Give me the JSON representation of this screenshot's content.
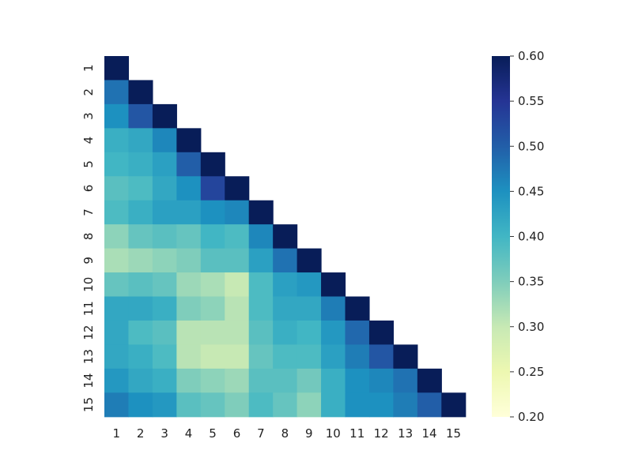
{
  "chart_data": {
    "type": "heatmap",
    "x_labels": [
      "1",
      "2",
      "3",
      "4",
      "5",
      "6",
      "7",
      "8",
      "9",
      "10",
      "11",
      "12",
      "13",
      "14",
      "15"
    ],
    "y_labels": [
      "1",
      "2",
      "3",
      "4",
      "5",
      "6",
      "7",
      "8",
      "9",
      "10",
      "11",
      "12",
      "13",
      "14",
      "15"
    ],
    "mask": "upper triangle (cells above diagonal hidden)",
    "values": [
      [
        0.6
      ],
      [
        0.48,
        0.6
      ],
      [
        0.45,
        0.51,
        0.6
      ],
      [
        0.41,
        0.42,
        0.46,
        0.6
      ],
      [
        0.4,
        0.41,
        0.43,
        0.5,
        0.6
      ],
      [
        0.38,
        0.39,
        0.42,
        0.45,
        0.53,
        0.6
      ],
      [
        0.39,
        0.41,
        0.43,
        0.43,
        0.45,
        0.46,
        0.6
      ],
      [
        0.34,
        0.37,
        0.38,
        0.37,
        0.4,
        0.39,
        0.46,
        0.6
      ],
      [
        0.32,
        0.33,
        0.34,
        0.35,
        0.38,
        0.38,
        0.43,
        0.48,
        0.6
      ],
      [
        0.37,
        0.38,
        0.37,
        0.33,
        0.32,
        0.3,
        0.39,
        0.43,
        0.44,
        0.6
      ],
      [
        0.42,
        0.42,
        0.41,
        0.35,
        0.34,
        0.31,
        0.39,
        0.42,
        0.42,
        0.47,
        0.6
      ],
      [
        0.42,
        0.39,
        0.38,
        0.31,
        0.31,
        0.31,
        0.38,
        0.41,
        0.4,
        0.44,
        0.49,
        0.6
      ],
      [
        0.42,
        0.41,
        0.39,
        0.31,
        0.3,
        0.3,
        0.37,
        0.39,
        0.39,
        0.43,
        0.47,
        0.51,
        0.6
      ],
      [
        0.44,
        0.42,
        0.41,
        0.35,
        0.34,
        0.33,
        0.38,
        0.38,
        0.36,
        0.41,
        0.45,
        0.46,
        0.48,
        0.6
      ],
      [
        0.47,
        0.45,
        0.44,
        0.38,
        0.37,
        0.35,
        0.39,
        0.37,
        0.34,
        0.41,
        0.45,
        0.45,
        0.47,
        0.5,
        0.6
      ]
    ],
    "colormap": "YlGnBu",
    "vmin": 0.2,
    "vmax": 0.6,
    "colorbar_ticks": [
      "0.20",
      "0.25",
      "0.30",
      "0.35",
      "0.40",
      "0.45",
      "0.50",
      "0.55",
      "0.60"
    ],
    "colorbar_placement": "right",
    "title": "",
    "xlabel": "",
    "ylabel": ""
  }
}
